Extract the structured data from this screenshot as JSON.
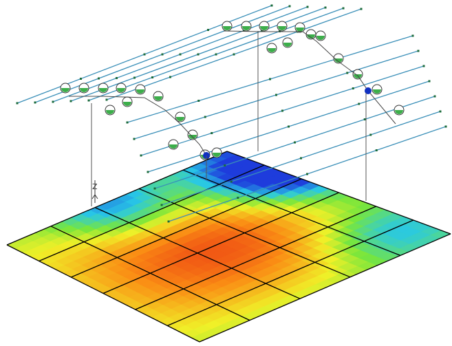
{
  "axis_label": "Z"
}
